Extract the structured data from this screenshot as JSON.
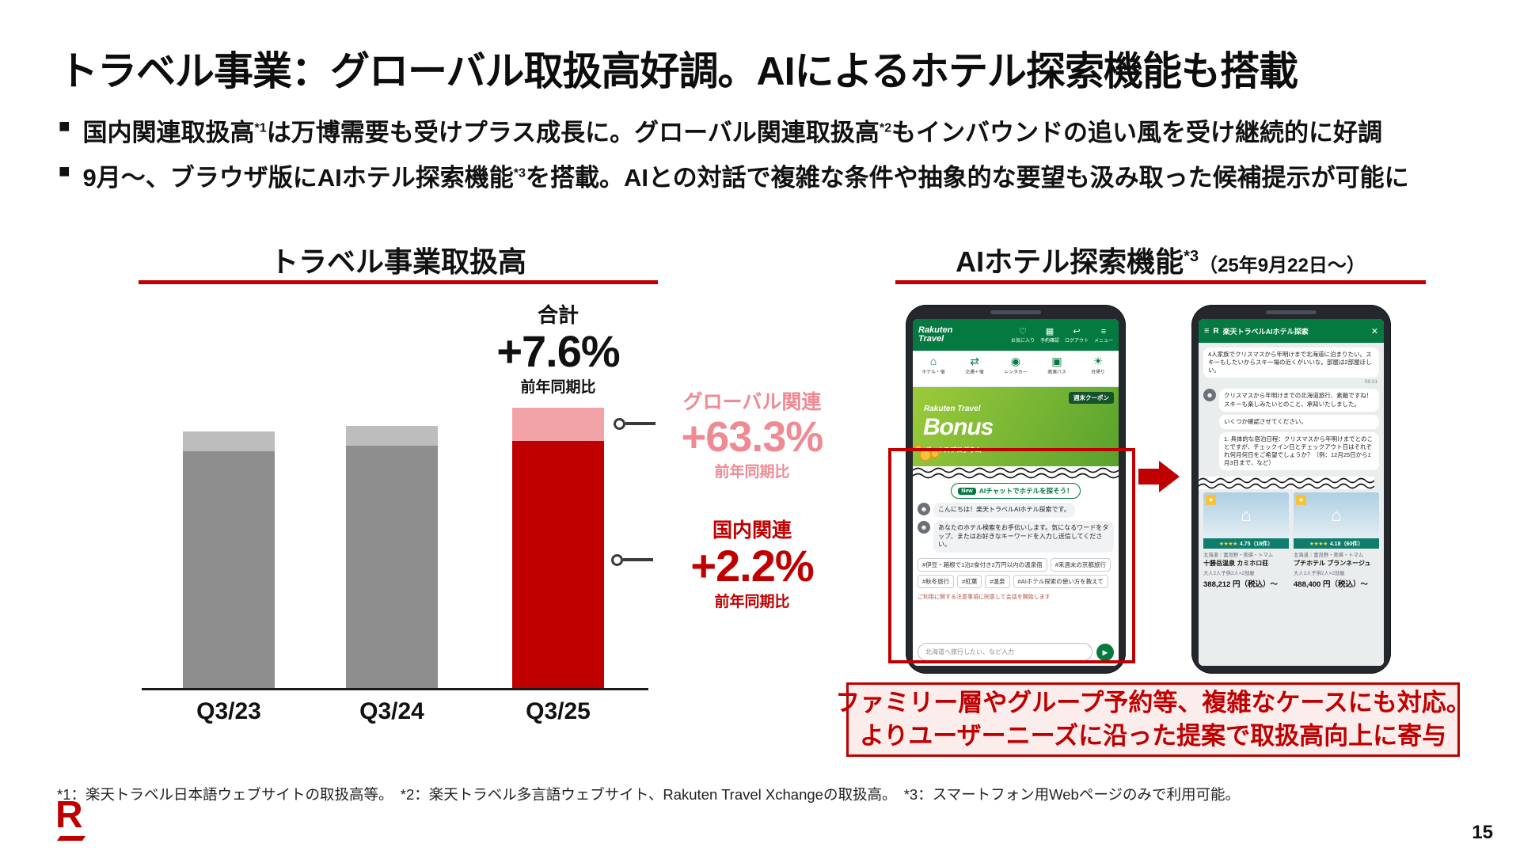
{
  "slide": {
    "title": "トラベル事業：グローバル取扱高好調。AIによるホテル探索機能も搭載",
    "bullet_marker": "■",
    "bullet1": {
      "t1": "国内関連取扱高",
      "sup1": "*1",
      "t2": "は万博需要も受けプラス成長に。グローバル関連取扱高",
      "sup2": "*2",
      "t3": "もインバウンドの追い風を受け継続的に好調"
    },
    "bullet2": {
      "t1": "9月〜、ブラウザ版にAIホテル探索機能",
      "sup1": "*3",
      "t2": "を搭載。AIとの対話で複雑な条件や抽象的な要望も汲み取った候補提示が可能に"
    },
    "footnote": "*1：楽天トラベル日本語ウェブサイトの取扱高等。　*2：楽天トラベル多言語ウェブサイト、Rakuten Travel Xchangeの取扱高。　*3：スマートフォン用Webページのみで利用可能。",
    "page_number": "15",
    "logo_letter": "R"
  },
  "colors": {
    "crimson": "#C00000",
    "pink_text": "#EF8A93",
    "bar_domestic": [
      "#8E8E8E",
      "#8E8E8E",
      "#C00000"
    ],
    "bar_global": [
      "#BDBDBD",
      "#BDBDBD",
      "#F2A3A8"
    ],
    "travel_green": "#047A41"
  },
  "chart": {
    "heading": "トラベル事業取扱高",
    "total_label": "合計",
    "total_value": "+7.6%",
    "total_sub": "前年同期比",
    "global_label": "グローバル関連",
    "global_value": "+63.3%",
    "global_sub": "前年同期比",
    "domestic_label": "国内関連",
    "domestic_value": "+2.2%",
    "domestic_sub": "前年同期比"
  },
  "chart_data": {
    "type": "bar",
    "stacked": true,
    "title": "トラベル事業取扱高",
    "categories": [
      "Q3/23",
      "Q3/24",
      "Q3/25"
    ],
    "series": [
      {
        "name": "国内関連",
        "values": [
          239,
          245,
          250
        ],
        "yoy": "+2.2%"
      },
      {
        "name": "グローバル関連",
        "values": [
          20,
          20,
          33
        ],
        "yoy": "+63.3%"
      }
    ],
    "total_yoy": "+7.6%",
    "xlabel": "",
    "ylabel": ""
  },
  "right_panel": {
    "heading": {
      "main": "AIホテル探索機能",
      "sup": "*3",
      "date": "（25年9月22日〜）"
    },
    "phone1": {
      "brand": "Rakuten Travel",
      "header_icons": [
        {
          "icon": "♡",
          "label": "お気に入り",
          "name": "favorites"
        },
        {
          "icon": "▦",
          "label": "予約確認",
          "name": "bookings"
        },
        {
          "icon": "↩",
          "label": "ログアウト",
          "name": "logout"
        },
        {
          "icon": "≡",
          "label": "メニュー",
          "name": "menu"
        }
      ],
      "tabs": [
        {
          "icon": "⌂",
          "label": "ホテル・宿",
          "name": "hotel"
        },
        {
          "icon": "⇄",
          "label": "交通＋宿",
          "name": "transport-stay"
        },
        {
          "icon": "◉",
          "label": "レンタカー",
          "name": "rental-car"
        },
        {
          "icon": "▣",
          "label": "高速バス",
          "name": "highway-bus"
        },
        {
          "icon": "☀",
          "label": "日帰り",
          "name": "day-trip"
        }
      ],
      "banner": {
        "coupon": "週末クーポン",
        "script": "Rakuten Travel",
        "bonus": "Bonus",
        "sub": "ボーナスプログラム"
      },
      "ai_pill": {
        "badge": "New",
        "label": "AIチャットでホテルを探そう！"
      },
      "msg1": "こんにちは！楽天トラベルAIホテル探索です。",
      "msg2": "あなたのホテル検索をお手伝いします。気になるワードをタップ、またはお好きなキーワードを入力し送信してください。",
      "chips": [
        "#伊豆・箱根で1泊2食付き2万円以内の温泉宿",
        "#来週末の京都旅行",
        "#秋冬旅行",
        "#紅葉",
        "#温泉",
        "#AIホテル探索の使い方を教えて"
      ],
      "notice": "ご利用に関する注意事項に同意して会話を開始します",
      "input_placeholder": "北海道へ旅行したい、など入力",
      "send_icon": "▶"
    },
    "phone2": {
      "header": {
        "menu": "≡",
        "brand": "R",
        "title": "楽天トラベルAIホテル探索",
        "close": "✕"
      },
      "user_msg": "4人家族でクリスマスから年明けまで北海道に泊まりたい。スキーもしたいからスキー場の近くがいいな。部屋は2部屋ほしい。",
      "time": "08:31",
      "ai": [
        "クリスマスから年明けまでの北海道旅行、素敵ですね！スキーも楽しみたいとのこと、承知いたしました。",
        "いくつか確認させてください。",
        "1. 具体的な宿泊日程：クリスマスから年明けまでとのことですが、チェックイン日とチェックアウト日はそれぞれ何月何日をご希望でしょうか？（例：12月25日から1月3日まで、など）"
      ],
      "photo_icon": "⌂",
      "badge_icon": "★",
      "hotels": [
        {
          "stars": "★★★★",
          "rating": "4.75（18件）",
          "area": "北海道｜富良野・美瑛・トマム",
          "name": "十勝岳温泉 カミホロ荘",
          "cond": "大人2人子供2人×2部屋",
          "price": "388,212 円（税込）〜"
        },
        {
          "stars": "★★★★",
          "rating": "4.18（60件）",
          "area": "北海道｜富良野・美瑛・トマム",
          "name": "プチホテル ブランネージュ",
          "cond": "大人2人子供2人×2部屋",
          "price": "488,400 円（税込）〜"
        }
      ]
    },
    "callout": {
      "line1": "ファミリー層やグループ予約等、複雑なケースにも対応。",
      "line2": "よりユーザーニーズに沿った提案で取扱高向上に寄与"
    }
  }
}
